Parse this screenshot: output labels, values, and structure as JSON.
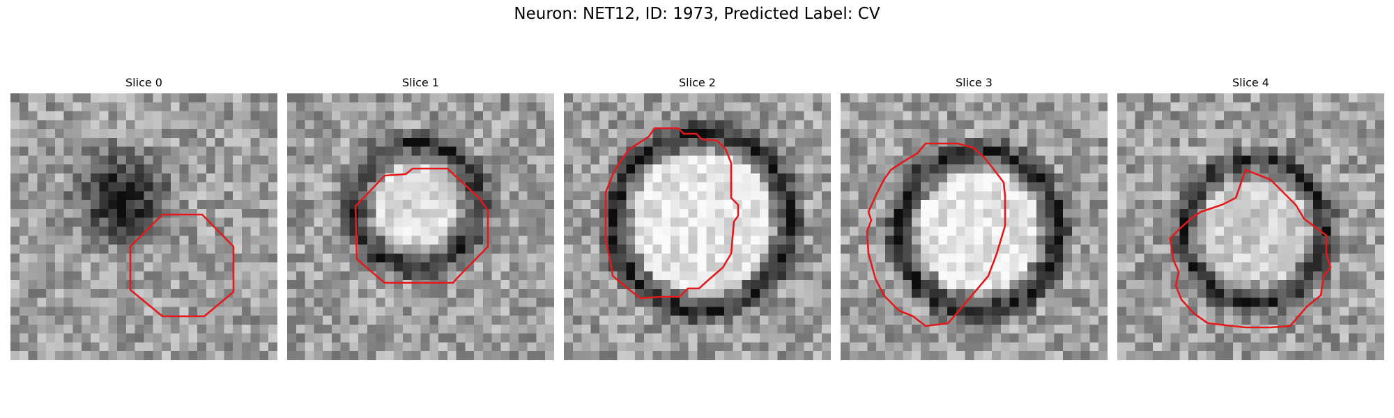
{
  "figure": {
    "title": "Neuron: NET12, ID: 1973, Predicted Label: CV",
    "contour_color": "#e31a1c"
  },
  "panels": [
    {
      "title": "Slice 0"
    },
    {
      "title": "Slice 1"
    },
    {
      "title": "Slice 2"
    },
    {
      "title": "Slice 3"
    },
    {
      "title": "Slice 4"
    }
  ]
}
